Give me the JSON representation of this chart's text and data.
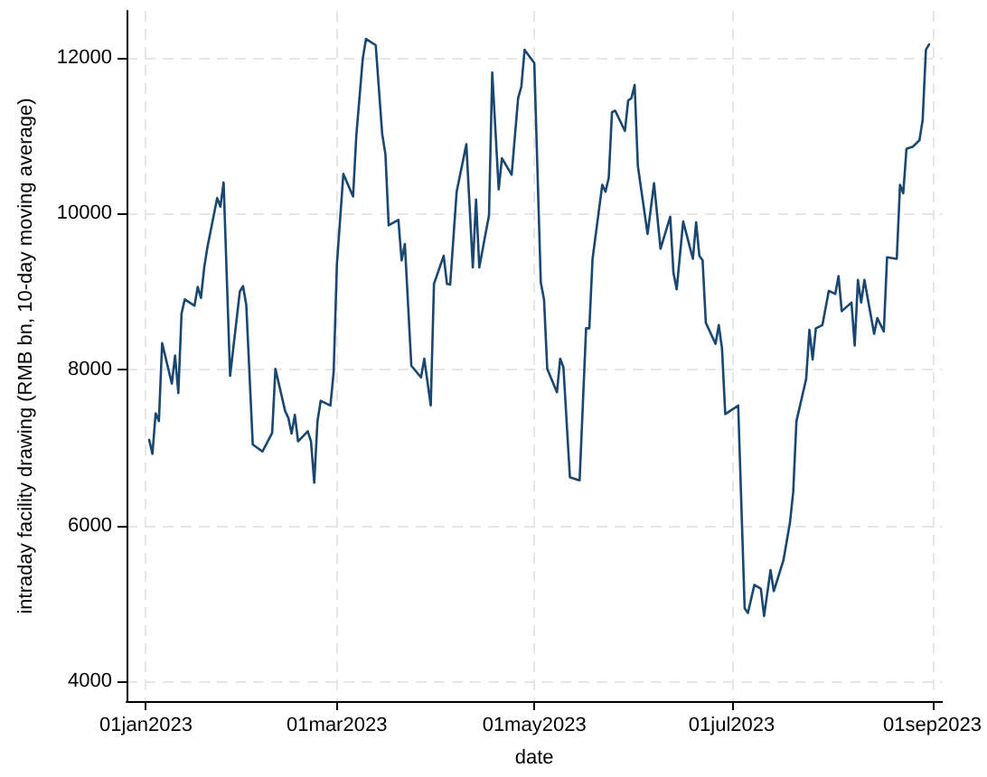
{
  "chart_data": {
    "type": "line",
    "xlabel": "date",
    "ylabel": "intraday facility drawing (RMB bn, 10-day moving average)",
    "x": [
      "2023-01-02",
      "2023-01-03",
      "2023-01-04",
      "2023-01-05",
      "2023-01-06",
      "2023-01-09",
      "2023-01-10",
      "2023-01-11",
      "2023-01-12",
      "2023-01-13",
      "2023-01-16",
      "2023-01-17",
      "2023-01-18",
      "2023-01-19",
      "2023-01-20",
      "2023-01-23",
      "2023-01-24",
      "2023-01-25",
      "2023-01-27",
      "2023-01-30",
      "2023-01-31",
      "2023-02-01",
      "2023-02-03",
      "2023-02-06",
      "2023-02-09",
      "2023-02-10",
      "2023-02-13",
      "2023-02-14",
      "2023-02-15",
      "2023-02-16",
      "2023-02-17",
      "2023-02-20",
      "2023-02-21",
      "2023-02-22",
      "2023-02-23",
      "2023-02-24",
      "2023-02-27",
      "2023-02-28",
      "2023-03-01",
      "2023-03-03",
      "2023-03-06",
      "2023-03-07",
      "2023-03-09",
      "2023-03-10",
      "2023-03-13",
      "2023-03-15",
      "2023-03-16",
      "2023-03-17",
      "2023-03-20",
      "2023-03-21",
      "2023-03-22",
      "2023-03-24",
      "2023-03-27",
      "2023-03-28",
      "2023-03-30",
      "2023-03-31",
      "2023-04-03",
      "2023-04-04",
      "2023-04-05",
      "2023-04-07",
      "2023-04-10",
      "2023-04-12",
      "2023-04-13",
      "2023-04-14",
      "2023-04-17",
      "2023-04-18",
      "2023-04-20",
      "2023-04-21",
      "2023-04-24",
      "2023-04-26",
      "2023-04-27",
      "2023-04-28",
      "2023-05-01",
      "2023-05-03",
      "2023-05-04",
      "2023-05-05",
      "2023-05-08",
      "2023-05-09",
      "2023-05-10",
      "2023-05-12",
      "2023-05-15",
      "2023-05-17",
      "2023-05-18",
      "2023-05-19",
      "2023-05-22",
      "2023-05-23",
      "2023-05-24",
      "2023-05-25",
      "2023-05-26",
      "2023-05-29",
      "2023-05-30",
      "2023-05-31",
      "2023-06-01",
      "2023-06-02",
      "2023-06-05",
      "2023-06-07",
      "2023-06-09",
      "2023-06-12",
      "2023-06-13",
      "2023-06-14",
      "2023-06-16",
      "2023-06-19",
      "2023-06-20",
      "2023-06-21",
      "2023-06-22",
      "2023-06-23",
      "2023-06-26",
      "2023-06-27",
      "2023-06-28",
      "2023-06-29",
      "2023-07-03",
      "2023-07-05",
      "2023-07-06",
      "2023-07-08",
      "2023-07-10",
      "2023-07-11",
      "2023-07-13",
      "2023-07-14",
      "2023-07-17",
      "2023-07-19",
      "2023-07-20",
      "2023-07-21",
      "2023-07-24",
      "2023-07-25",
      "2023-07-26",
      "2023-07-27",
      "2023-07-29",
      "2023-07-31",
      "2023-08-02",
      "2023-08-03",
      "2023-08-04",
      "2023-08-07",
      "2023-08-08",
      "2023-08-09",
      "2023-08-10",
      "2023-08-11",
      "2023-08-14",
      "2023-08-15",
      "2023-08-17",
      "2023-08-18",
      "2023-08-21",
      "2023-08-22",
      "2023-08-23",
      "2023-08-24",
      "2023-08-26",
      "2023-08-28",
      "2023-08-29",
      "2023-08-30",
      "2023-08-31"
    ],
    "series": [
      {
        "color": "#1a476f",
        "values": [
          7100,
          6920,
          7440,
          7340,
          8340,
          7820,
          8180,
          7700,
          8720,
          8900,
          8820,
          9060,
          8920,
          9310,
          9570,
          10200,
          10090,
          10400,
          7920,
          9000,
          9070,
          8830,
          7040,
          6950,
          7190,
          8010,
          7470,
          7380,
          7180,
          7420,
          7080,
          7210,
          7080,
          6550,
          7340,
          7600,
          7540,
          7970,
          9350,
          10510,
          10220,
          11000,
          11990,
          12240,
          12160,
          11020,
          10760,
          9850,
          9920,
          9400,
          9610,
          8050,
          7900,
          8140,
          7540,
          9100,
          9460,
          9100,
          9090,
          10280,
          10890,
          9310,
          10180,
          9310,
          9980,
          11810,
          10310,
          10710,
          10500,
          11480,
          11630,
          12100,
          11930,
          9120,
          8900,
          8010,
          7710,
          8140,
          8030,
          6620,
          6580,
          8530,
          8530,
          9420,
          10370,
          10280,
          10460,
          11300,
          11320,
          11060,
          11450,
          11480,
          11650,
          10610,
          9740,
          10390,
          9550,
          9960,
          9240,
          9030,
          9900,
          9420,
          9890,
          9460,
          9400,
          8600,
          8330,
          8570,
          8270,
          7430,
          7540,
          4940,
          4880,
          5240,
          5190,
          4840,
          5430,
          5160,
          5560,
          6040,
          6430,
          7340,
          7880,
          8510,
          8130,
          8530,
          8570,
          9010,
          8970,
          9200,
          8750,
          8860,
          8310,
          9150,
          8860,
          9150,
          8460,
          8660,
          8490,
          9440,
          9420,
          10370,
          10260,
          10830,
          10860,
          10940,
          11200,
          12100,
          12170
        ]
      }
    ],
    "xlim": [
      "2022-12-26",
      "2023-09-04"
    ],
    "xticks": [
      {
        "value": "2023-01-01",
        "label": "01jan2023"
      },
      {
        "value": "2023-03-01",
        "label": "01mar2023"
      },
      {
        "value": "2023-05-01",
        "label": "01may2023"
      },
      {
        "value": "2023-07-01",
        "label": "01jul2023"
      },
      {
        "value": "2023-09-01",
        "label": "01sep2023"
      }
    ],
    "ylim": [
      3750,
      12600
    ],
    "yticks": [
      4000,
      6000,
      8000,
      10000,
      12000
    ],
    "grid": true,
    "marker": "none",
    "line_style": "solid"
  }
}
